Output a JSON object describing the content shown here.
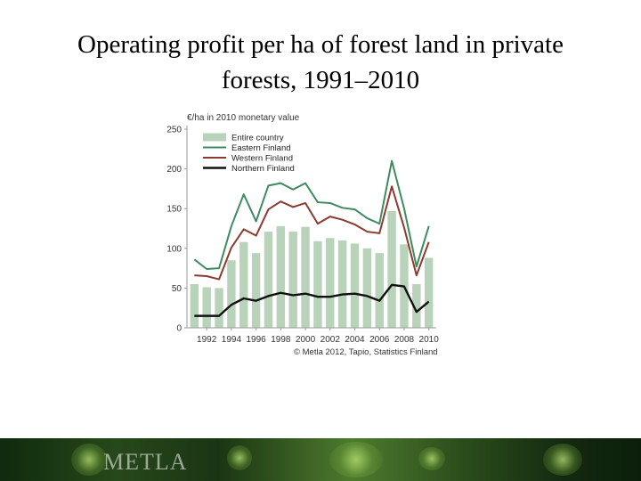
{
  "slide": {
    "title_line1": "Operating profit per ha of forest land in private",
    "title_line2": "forests, 1991–2010"
  },
  "footer": {
    "logo_text": "METLA"
  },
  "chart_data": {
    "type": "bar",
    "unit_label": "€/ha in 2010 monetary value",
    "source": "© Metla 2012, Tapio, Statistics Finland",
    "x": [
      1991,
      1992,
      1993,
      1994,
      1995,
      1996,
      1997,
      1998,
      1999,
      2000,
      2001,
      2002,
      2003,
      2004,
      2005,
      2006,
      2007,
      2008,
      2009,
      2010
    ],
    "x_tick_labels": [
      "1992",
      "1994",
      "1996",
      "1998",
      "2000",
      "2002",
      "2004",
      "2006",
      "2008",
      "2010"
    ],
    "x_tick_values": [
      1992,
      1994,
      1996,
      1998,
      2000,
      2002,
      2004,
      2006,
      2008,
      2010
    ],
    "ylim": [
      0,
      250
    ],
    "y_ticks": [
      0,
      50,
      100,
      150,
      200,
      250
    ],
    "grid": false,
    "legend_position": "top-left",
    "bars": {
      "name": "Entire country",
      "color": "#b9d3ba",
      "values": [
        55,
        51,
        50,
        85,
        108,
        94,
        121,
        128,
        121,
        127,
        109,
        113,
        110,
        106,
        100,
        94,
        147,
        105,
        55,
        88
      ]
    },
    "series": [
      {
        "name": "Eastern Finland",
        "color": "#3d8b5f",
        "values": [
          86,
          74,
          75,
          128,
          168,
          134,
          179,
          182,
          174,
          182,
          158,
          157,
          151,
          149,
          138,
          131,
          210,
          150,
          77,
          128
        ]
      },
      {
        "name": "Western Finland",
        "color": "#8b3a2e",
        "values": [
          66,
          65,
          61,
          101,
          124,
          116,
          149,
          159,
          152,
          157,
          131,
          140,
          136,
          130,
          121,
          119,
          178,
          126,
          66,
          108
        ]
      },
      {
        "name": "Northern Finland",
        "color": "#111111",
        "values": [
          15,
          15,
          15,
          29,
          37,
          34,
          40,
          44,
          41,
          43,
          39,
          39,
          42,
          43,
          40,
          34,
          54,
          52,
          20,
          33
        ]
      }
    ]
  }
}
